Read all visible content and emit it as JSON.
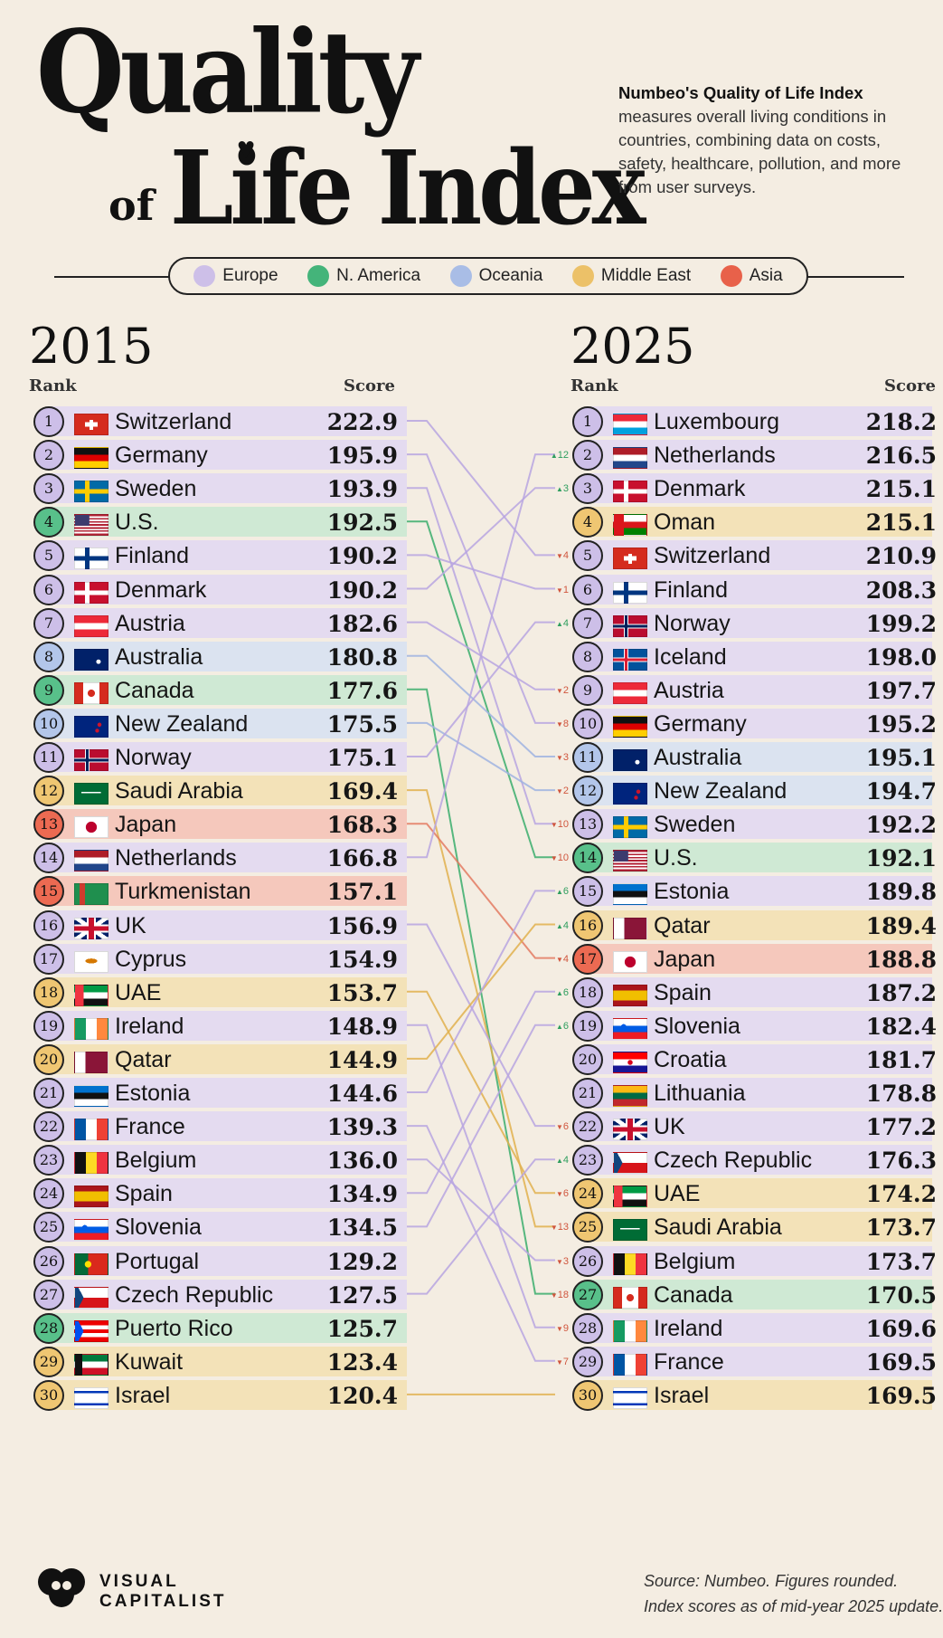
{
  "header": {
    "title_line1": "Quality",
    "title_of": "of",
    "title_line2": "Life Index",
    "desc_bold": "Numbeo's Quality of Life Index",
    "desc_rest": "measures overall living conditions in countries, combining data on costs, safety, healthcare, pollution, and more from user surveys."
  },
  "legend": [
    {
      "label": "Europe",
      "color": "#cdbfe8"
    },
    {
      "label": "N. America",
      "color": "#44b47a"
    },
    {
      "label": "Oceania",
      "color": "#a9bde6"
    },
    {
      "label": "Middle East",
      "color": "#ecc168"
    },
    {
      "label": "Asia",
      "color": "#e8614a"
    }
  ],
  "chart_data": {
    "type": "table",
    "region_colors": {
      "Europe": {
        "badge": "#cdbfe8",
        "band": "#e4dbf0",
        "line": "#b7a4e0"
      },
      "N. America": {
        "badge": "#58c08a",
        "band": "#cfe9d4",
        "line": "#3aad6c"
      },
      "Oceania": {
        "badge": "#b3c6ea",
        "band": "#dbe3f0",
        "line": "#9fb3e0"
      },
      "Middle East": {
        "badge": "#efc672",
        "band": "#f3e2b8",
        "line": "#e0b04d"
      },
      "Asia": {
        "badge": "#ec6a52",
        "band": "#f5c8bc",
        "line": "#e37a62"
      }
    },
    "left": {
      "year": "2015",
      "rank_header": "Rank",
      "score_header": "Score",
      "rows": [
        {
          "rank": "1",
          "country": "Switzerland",
          "score": "222.9",
          "region": "Europe",
          "flag": "switzerland"
        },
        {
          "rank": "2",
          "country": "Germany",
          "score": "195.9",
          "region": "Europe",
          "flag": "germany"
        },
        {
          "rank": "3",
          "country": "Sweden",
          "score": "193.9",
          "region": "Europe",
          "flag": "sweden"
        },
        {
          "rank": "4",
          "country": "U.S.",
          "score": "192.5",
          "region": "N. America",
          "flag": "us"
        },
        {
          "rank": "5",
          "country": "Finland",
          "score": "190.2",
          "region": "Europe",
          "flag": "finland"
        },
        {
          "rank": "6",
          "country": "Denmark",
          "score": "190.2",
          "region": "Europe",
          "flag": "denmark"
        },
        {
          "rank": "7",
          "country": "Austria",
          "score": "182.6",
          "region": "Europe",
          "flag": "austria"
        },
        {
          "rank": "8",
          "country": "Australia",
          "score": "180.8",
          "region": "Oceania",
          "flag": "australia"
        },
        {
          "rank": "9",
          "country": "Canada",
          "score": "177.6",
          "region": "N. America",
          "flag": "canada"
        },
        {
          "rank": "10",
          "country": "New Zealand",
          "score": "175.5",
          "region": "Oceania",
          "flag": "newzealand"
        },
        {
          "rank": "11",
          "country": "Norway",
          "score": "175.1",
          "region": "Europe",
          "flag": "norway"
        },
        {
          "rank": "12",
          "country": "Saudi Arabia",
          "score": "169.4",
          "region": "Middle East",
          "flag": "saudi"
        },
        {
          "rank": "13",
          "country": "Japan",
          "score": "168.3",
          "region": "Asia",
          "flag": "japan"
        },
        {
          "rank": "14",
          "country": "Netherlands",
          "score": "166.8",
          "region": "Europe",
          "flag": "netherlands"
        },
        {
          "rank": "15",
          "country": "Turkmenistan",
          "score": "157.1",
          "region": "Asia",
          "flag": "turkmenistan"
        },
        {
          "rank": "16",
          "country": "UK",
          "score": "156.9",
          "region": "Europe",
          "flag": "uk"
        },
        {
          "rank": "17",
          "country": "Cyprus",
          "score": "154.9",
          "region": "Europe",
          "flag": "cyprus"
        },
        {
          "rank": "18",
          "country": "UAE",
          "score": "153.7",
          "region": "Middle East",
          "flag": "uae"
        },
        {
          "rank": "19",
          "country": "Ireland",
          "score": "148.9",
          "region": "Europe",
          "flag": "ireland"
        },
        {
          "rank": "20",
          "country": "Qatar",
          "score": "144.9",
          "region": "Middle East",
          "flag": "qatar"
        },
        {
          "rank": "21",
          "country": "Estonia",
          "score": "144.6",
          "region": "Europe",
          "flag": "estonia"
        },
        {
          "rank": "22",
          "country": "France",
          "score": "139.3",
          "region": "Europe",
          "flag": "france"
        },
        {
          "rank": "23",
          "country": "Belgium",
          "score": "136.0",
          "region": "Europe",
          "flag": "belgium"
        },
        {
          "rank": "24",
          "country": "Spain",
          "score": "134.9",
          "region": "Europe",
          "flag": "spain"
        },
        {
          "rank": "25",
          "country": "Slovenia",
          "score": "134.5",
          "region": "Europe",
          "flag": "slovenia"
        },
        {
          "rank": "26",
          "country": "Portugal",
          "score": "129.2",
          "region": "Europe",
          "flag": "portugal"
        },
        {
          "rank": "27",
          "country": "Czech Republic",
          "score": "127.5",
          "region": "Europe",
          "flag": "czech"
        },
        {
          "rank": "28",
          "country": "Puerto Rico",
          "score": "125.7",
          "region": "N. America",
          "flag": "puertorico"
        },
        {
          "rank": "29",
          "country": "Kuwait",
          "score": "123.4",
          "region": "Middle East",
          "flag": "kuwait"
        },
        {
          "rank": "30",
          "country": "Israel",
          "score": "120.4",
          "region": "Middle East",
          "flag": "israel"
        }
      ]
    },
    "right": {
      "year": "2025",
      "rank_header": "Rank",
      "score_header": "Score",
      "rows": [
        {
          "rank": "1",
          "country": "Luxembourg",
          "score": "218.2",
          "region": "Europe",
          "flag": "luxembourg",
          "change": "",
          "dir": ""
        },
        {
          "rank": "2",
          "country": "Netherlands",
          "score": "216.5",
          "region": "Europe",
          "flag": "netherlands",
          "change": "12",
          "dir": "up"
        },
        {
          "rank": "3",
          "country": "Denmark",
          "score": "215.1",
          "region": "Europe",
          "flag": "denmark",
          "change": "3",
          "dir": "up"
        },
        {
          "rank": "4",
          "country": "Oman",
          "score": "215.1",
          "region": "Middle East",
          "flag": "oman",
          "change": "",
          "dir": ""
        },
        {
          "rank": "5",
          "country": "Switzerland",
          "score": "210.9",
          "region": "Europe",
          "flag": "switzerland",
          "change": "4",
          "dir": "down"
        },
        {
          "rank": "6",
          "country": "Finland",
          "score": "208.3",
          "region": "Europe",
          "flag": "finland",
          "change": "1",
          "dir": "down"
        },
        {
          "rank": "7",
          "country": "Norway",
          "score": "199.2",
          "region": "Europe",
          "flag": "norway",
          "change": "4",
          "dir": "up"
        },
        {
          "rank": "8",
          "country": "Iceland",
          "score": "198.0",
          "region": "Europe",
          "flag": "iceland",
          "change": "",
          "dir": ""
        },
        {
          "rank": "9",
          "country": "Austria",
          "score": "197.7",
          "region": "Europe",
          "flag": "austria",
          "change": "2",
          "dir": "down"
        },
        {
          "rank": "10",
          "country": "Germany",
          "score": "195.2",
          "region": "Europe",
          "flag": "germany",
          "change": "8",
          "dir": "down"
        },
        {
          "rank": "11",
          "country": "Australia",
          "score": "195.1",
          "region": "Oceania",
          "flag": "australia",
          "change": "3",
          "dir": "down"
        },
        {
          "rank": "12",
          "country": "New Zealand",
          "score": "194.7",
          "region": "Oceania",
          "flag": "newzealand",
          "change": "2",
          "dir": "down"
        },
        {
          "rank": "13",
          "country": "Sweden",
          "score": "192.2",
          "region": "Europe",
          "flag": "sweden",
          "change": "10",
          "dir": "down"
        },
        {
          "rank": "14",
          "country": "U.S.",
          "score": "192.1",
          "region": "N. America",
          "flag": "us",
          "change": "10",
          "dir": "down"
        },
        {
          "rank": "15",
          "country": "Estonia",
          "score": "189.8",
          "region": "Europe",
          "flag": "estonia",
          "change": "6",
          "dir": "up"
        },
        {
          "rank": "16",
          "country": "Qatar",
          "score": "189.4",
          "region": "Middle East",
          "flag": "qatar",
          "change": "4",
          "dir": "up"
        },
        {
          "rank": "17",
          "country": "Japan",
          "score": "188.8",
          "region": "Asia",
          "flag": "japan",
          "change": "4",
          "dir": "down"
        },
        {
          "rank": "18",
          "country": "Spain",
          "score": "187.2",
          "region": "Europe",
          "flag": "spain",
          "change": "6",
          "dir": "up"
        },
        {
          "rank": "19",
          "country": "Slovenia",
          "score": "182.4",
          "region": "Europe",
          "flag": "slovenia",
          "change": "6",
          "dir": "up"
        },
        {
          "rank": "20",
          "country": "Croatia",
          "score": "181.7",
          "region": "Europe",
          "flag": "croatia",
          "change": "",
          "dir": ""
        },
        {
          "rank": "21",
          "country": "Lithuania",
          "score": "178.8",
          "region": "Europe",
          "flag": "lithuania",
          "change": "",
          "dir": ""
        },
        {
          "rank": "22",
          "country": "UK",
          "score": "177.2",
          "region": "Europe",
          "flag": "uk",
          "change": "6",
          "dir": "down"
        },
        {
          "rank": "23",
          "country": "Czech Republic",
          "score": "176.3",
          "region": "Europe",
          "flag": "czech",
          "change": "4",
          "dir": "up"
        },
        {
          "rank": "24",
          "country": "UAE",
          "score": "174.2",
          "region": "Middle East",
          "flag": "uae",
          "change": "6",
          "dir": "down"
        },
        {
          "rank": "25",
          "country": "Saudi Arabia",
          "score": "173.7",
          "region": "Middle East",
          "flag": "saudi",
          "change": "13",
          "dir": "down"
        },
        {
          "rank": "26",
          "country": "Belgium",
          "score": "173.7",
          "region": "Europe",
          "flag": "belgium",
          "change": "3",
          "dir": "down"
        },
        {
          "rank": "27",
          "country": "Canada",
          "score": "170.5",
          "region": "N. America",
          "flag": "canada",
          "change": "18",
          "dir": "down"
        },
        {
          "rank": "28",
          "country": "Ireland",
          "score": "169.6",
          "region": "Europe",
          "flag": "ireland",
          "change": "9",
          "dir": "down"
        },
        {
          "rank": "29",
          "country": "France",
          "score": "169.5",
          "region": "Europe",
          "flag": "france",
          "change": "7",
          "dir": "down"
        },
        {
          "rank": "30",
          "country": "Israel",
          "score": "169.5",
          "region": "Middle East",
          "flag": "israel",
          "change": "",
          "dir": ""
        }
      ]
    }
  },
  "footer": {
    "brand_line1": "VISUAL",
    "brand_line2": "CAPITALIST",
    "brand_icon": "visual-capitalist-logo",
    "source_line1": "Source: Numbeo. Figures rounded.",
    "source_line2": "Index scores as of mid-year 2025 update."
  }
}
